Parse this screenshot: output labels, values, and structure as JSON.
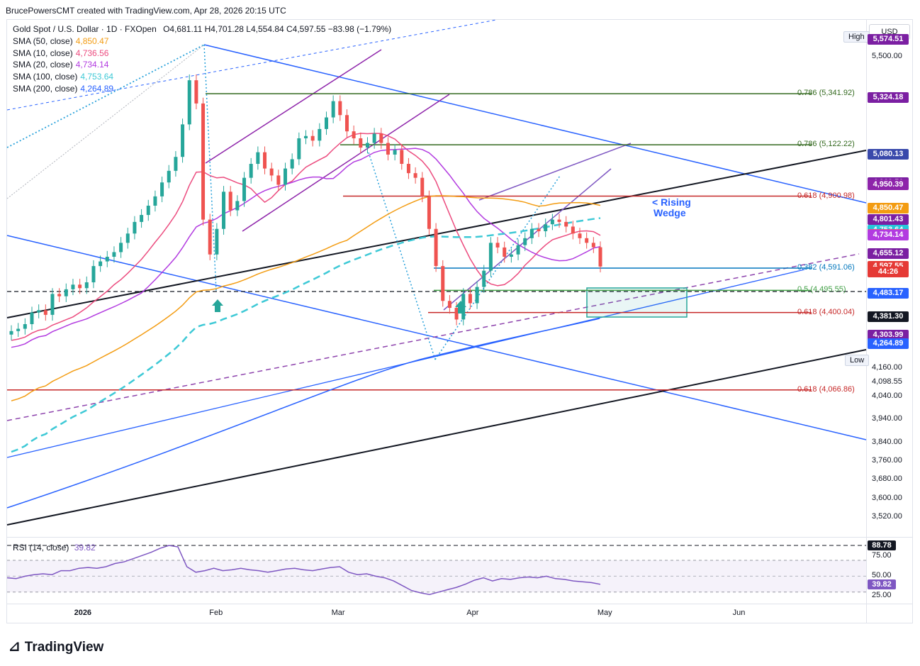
{
  "header": {
    "attribution": "BrucePowersCMT created with TradingView.com, Apr 28, 2026 20:15 UTC"
  },
  "instrument": {
    "title": "Gold Spot / U.S. Dollar · 1D · FXOpen",
    "ohlc": "O4,681.11  H4,701.28  L4,554.84  C4,597.55  −83.98 (−1.79%)"
  },
  "indicators": [
    {
      "label": "SMA (50, close)",
      "value": "4,850.47",
      "color": "#f39c12"
    },
    {
      "label": "SMA (10, close)",
      "value": "4,736.56",
      "color": "#ec4c7f"
    },
    {
      "label": "SMA (20, close)",
      "value": "4,734.14",
      "color": "#b23be0"
    },
    {
      "label": "SMA (100, close)",
      "value": "4,753.64",
      "color": "#3ec9d6"
    },
    {
      "label": "SMA (200, close)",
      "value": "4,264.89",
      "color": "#2962ff"
    }
  ],
  "axis": {
    "currency": "USD",
    "high_label": "High",
    "low_label": "Low"
  },
  "price_labels": [
    {
      "text": "5,574.51",
      "color": "#7b1fa2",
      "price": 5574.51
    },
    {
      "text": "5,324.18",
      "color": "#7b1fa2",
      "price": 5324.18
    },
    {
      "text": "5,080.13",
      "color": "#3949ab",
      "price": 5080.13
    },
    {
      "text": "4,960.51",
      "color": "#7b1fa2",
      "price": 4960.51
    },
    {
      "text": "4,950.39",
      "color": "#8e24aa",
      "price": 4950.39
    },
    {
      "text": "4,850.47",
      "color": "#f39c12",
      "price": 4850.47
    },
    {
      "text": "4,801.43",
      "color": "#7b1fa2",
      "price": 4801.43
    },
    {
      "text": "4,753.64",
      "color": "#26c6da",
      "price": 4753.64
    },
    {
      "text": "4,736.56",
      "color": "#ec4c7f",
      "price": 4736.56
    },
    {
      "text": "4,734.14",
      "color": "#b23be0",
      "price": 4734.14
    },
    {
      "text": "4,655.12",
      "color": "#7b1fa2",
      "price": 4655.12
    },
    {
      "text": "4,597.55",
      "color": "#e53935",
      "price": 4597.55
    },
    {
      "text": "44:26",
      "color": "#e53935",
      "price": 4575
    },
    {
      "text": "4,483.17",
      "color": "#2962ff",
      "price": 4483.17
    },
    {
      "text": "4,381.30",
      "color": "#131722",
      "price": 4381.3
    },
    {
      "text": "4,303.99",
      "color": "#7b1fa2",
      "price": 4303.99
    },
    {
      "text": "4,264.89",
      "color": "#2962ff",
      "price": 4264.89
    }
  ],
  "y_ticks": [
    "5,500.00",
    "4,160.00",
    "4,040.00",
    "3,940.00",
    "3,840.00",
    "3,760.00",
    "3,680.00",
    "3,600.00",
    "3,520.00"
  ],
  "high_value": "5,574.51",
  "low_value": "4,098.55",
  "fib_levels": [
    {
      "text": "0.786 (5,341.92)",
      "price": 5341.92,
      "color": "#33691e"
    },
    {
      "text": "0.786 (5,122.22)",
      "price": 5122.22,
      "color": "#33691e"
    },
    {
      "text": "0.618 (4,900.98)",
      "price": 4900.98,
      "color": "#c62828"
    },
    {
      "text": "0.382 (4,591.06)",
      "price": 4591.06,
      "color": "#0277bd"
    },
    {
      "text": "0.5 (4,495.55)",
      "price": 4495.55,
      "color": "#43a047"
    },
    {
      "text": "0.618 (4,400.04)",
      "price": 4400.04,
      "color": "#c62828"
    },
    {
      "text": "0.618 (4,066.86)",
      "price": 4066.86,
      "color": "#c62828"
    }
  ],
  "annotation": {
    "line1": "< Rising",
    "line2": "Wedge"
  },
  "x_ticks": [
    "2026",
    "Feb",
    "Mar",
    "Apr",
    "May",
    "Jun"
  ],
  "rsi": {
    "label": "RSI (14, close)",
    "value": "39.82",
    "ticks": [
      "88.78",
      "75.00",
      "50.00",
      "39.82",
      "25.00"
    ]
  },
  "brand": "TradingView",
  "chart_data": {
    "type": "candlestick",
    "title": "Gold Spot / U.S. Dollar · 1D · FXOpen",
    "x_range": [
      "2025-12-15",
      "2026-06-30"
    ],
    "ylim": [
      3440,
      5660
    ],
    "grid": false,
    "last_close": 4597.55,
    "recent_ohlc": [
      {
        "date": "2026-04-28",
        "open": 4681.11,
        "high": 4701.28,
        "low": 4554.84,
        "close": 4597.55
      }
    ],
    "moving_averages": [
      {
        "name": "SMA (50, close)",
        "last": 4850.47
      },
      {
        "name": "SMA (10, close)",
        "last": 4736.56
      },
      {
        "name": "SMA (20, close)",
        "last": 4734.14
      },
      {
        "name": "SMA (100, close)",
        "last": 4753.64
      },
      {
        "name": "SMA (200, close)",
        "last": 4264.89
      }
    ],
    "closes_approx": [
      4320,
      4330,
      4350,
      4400,
      4410,
      4390,
      4480,
      4470,
      4500,
      4520,
      4505,
      4530,
      4600,
      4620,
      4640,
      4660,
      4700,
      4740,
      4790,
      4820,
      4860,
      4900,
      4960,
      5010,
      5070,
      5210,
      5400,
      5300,
      4800,
      4650,
      4760,
      4920,
      4840,
      4880,
      4980,
      5040,
      5090,
      5020,
      4990,
      4950,
      5020,
      5060,
      5150,
      5160,
      5140,
      5190,
      5240,
      5310,
      5250,
      5180,
      5150,
      5110,
      5130,
      5170,
      5130,
      5080,
      5100,
      5040,
      5000,
      4980,
      4900,
      4760,
      4600,
      4450,
      4420,
      4370,
      4480,
      4440,
      4510,
      4580,
      4700,
      4680,
      4640,
      4650,
      4690,
      4720,
      4760,
      4750,
      4780,
      4800,
      4790,
      4770,
      4740,
      4720,
      4700,
      4681,
      4598
    ],
    "rsi_values_approx": [
      48,
      47,
      50,
      52,
      53,
      52,
      57,
      57,
      60,
      61,
      60,
      62,
      66,
      68,
      72,
      76,
      80,
      85,
      88.78,
      87,
      62,
      55,
      57,
      60,
      57,
      58,
      60,
      58,
      57,
      55,
      57,
      59,
      60,
      58,
      57,
      59,
      61,
      62,
      55,
      52,
      53,
      50,
      48,
      44,
      38,
      32,
      29,
      27,
      30,
      33,
      36,
      40,
      45,
      48,
      44,
      47,
      46,
      48,
      49,
      48,
      50,
      47,
      46,
      44,
      43,
      42,
      39.82
    ]
  }
}
